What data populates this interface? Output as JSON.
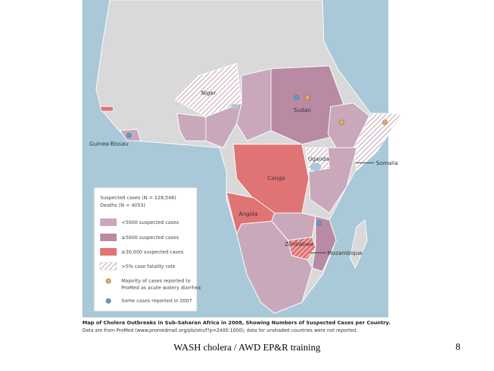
{
  "map": {
    "labels": [
      "Niger",
      "Sudan",
      "Guinea-Bissau",
      "Uganda",
      "Somalia",
      "Congo",
      "Angola",
      "Zimbabwe",
      "Mozambique"
    ],
    "legend": {
      "title": [
        "Suspected cases (N = 128,546)",
        "Deaths (N = 4053)"
      ],
      "items": [
        "<5000 suspected cases",
        "≥5000 suspected cases",
        "≥30,000 suspected cases",
        ">5% case fatality rate",
        "Majority of cases reported to",
        "ProMed as acute watery diarrhea",
        "Some cases reported in 2007"
      ]
    },
    "caption": {
      "title": "Map of Cholera Outbreaks in Sub-Saharan Africa in 2008, Showing Numbers of Suspected Cases per Country.",
      "source": "Data are from ProMed (www.promedmail.org/pls/otn/f?p=2400:1000); data for unshaded countries were not reported."
    }
  },
  "footer": {
    "text": "WASH cholera / AWD EP&R training",
    "page": "8"
  }
}
